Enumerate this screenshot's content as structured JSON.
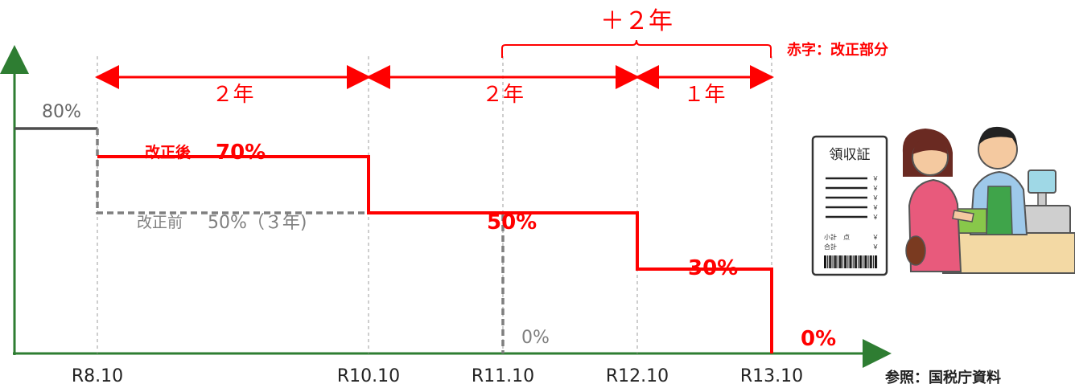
{
  "colors": {
    "axis": "#2e7d32",
    "after_reform": "#ff0000",
    "before_reform": "#7f7f7f",
    "guide": "#9e9e9e",
    "before_line": "#4d4d4d",
    "text_dark": "#333333"
  },
  "annotations": {
    "extension": "＋２年",
    "legend_note": "赤字：改正部分",
    "after_label": "改正後",
    "before_label": "改正前",
    "source": "参照：国税庁資料",
    "spans": [
      "２年",
      "２年",
      "１年"
    ]
  },
  "chart_data": {
    "type": "line",
    "step": true,
    "x_ticks": [
      "R8.10",
      "R10.10",
      "R11.10",
      "R12.10",
      "R13.10"
    ],
    "initial": {
      "value": 80,
      "label": "80%"
    },
    "series": [
      {
        "name": "改正後",
        "color": "#ff0000",
        "steps": [
          {
            "from": "R8.10",
            "to": "R10.10",
            "value": 70,
            "label": "70%"
          },
          {
            "from": "R10.10",
            "to": "R12.10",
            "value": 50,
            "label": "50%"
          },
          {
            "from": "R12.10",
            "to": "R13.10",
            "value": 30,
            "label": "30%"
          },
          {
            "from": "R13.10",
            "value": 0,
            "label": "0%"
          }
        ]
      },
      {
        "name": "改正前",
        "color": "#7f7f7f",
        "steps": [
          {
            "from": "R8.10",
            "to": "R11.10",
            "value": 50,
            "label": "50%（３年)"
          },
          {
            "from": "R11.10",
            "value": 0,
            "label": "0%"
          }
        ]
      }
    ],
    "xlabel": "",
    "ylabel": "",
    "grid": false
  },
  "receipt": {
    "title": "領収証",
    "rows": [
      "￥",
      "￥",
      "￥",
      "￥",
      "￥"
    ],
    "subtotal": "小計　点",
    "subtotal_mark": "￥",
    "total": "合計",
    "total_mark": "￥"
  }
}
